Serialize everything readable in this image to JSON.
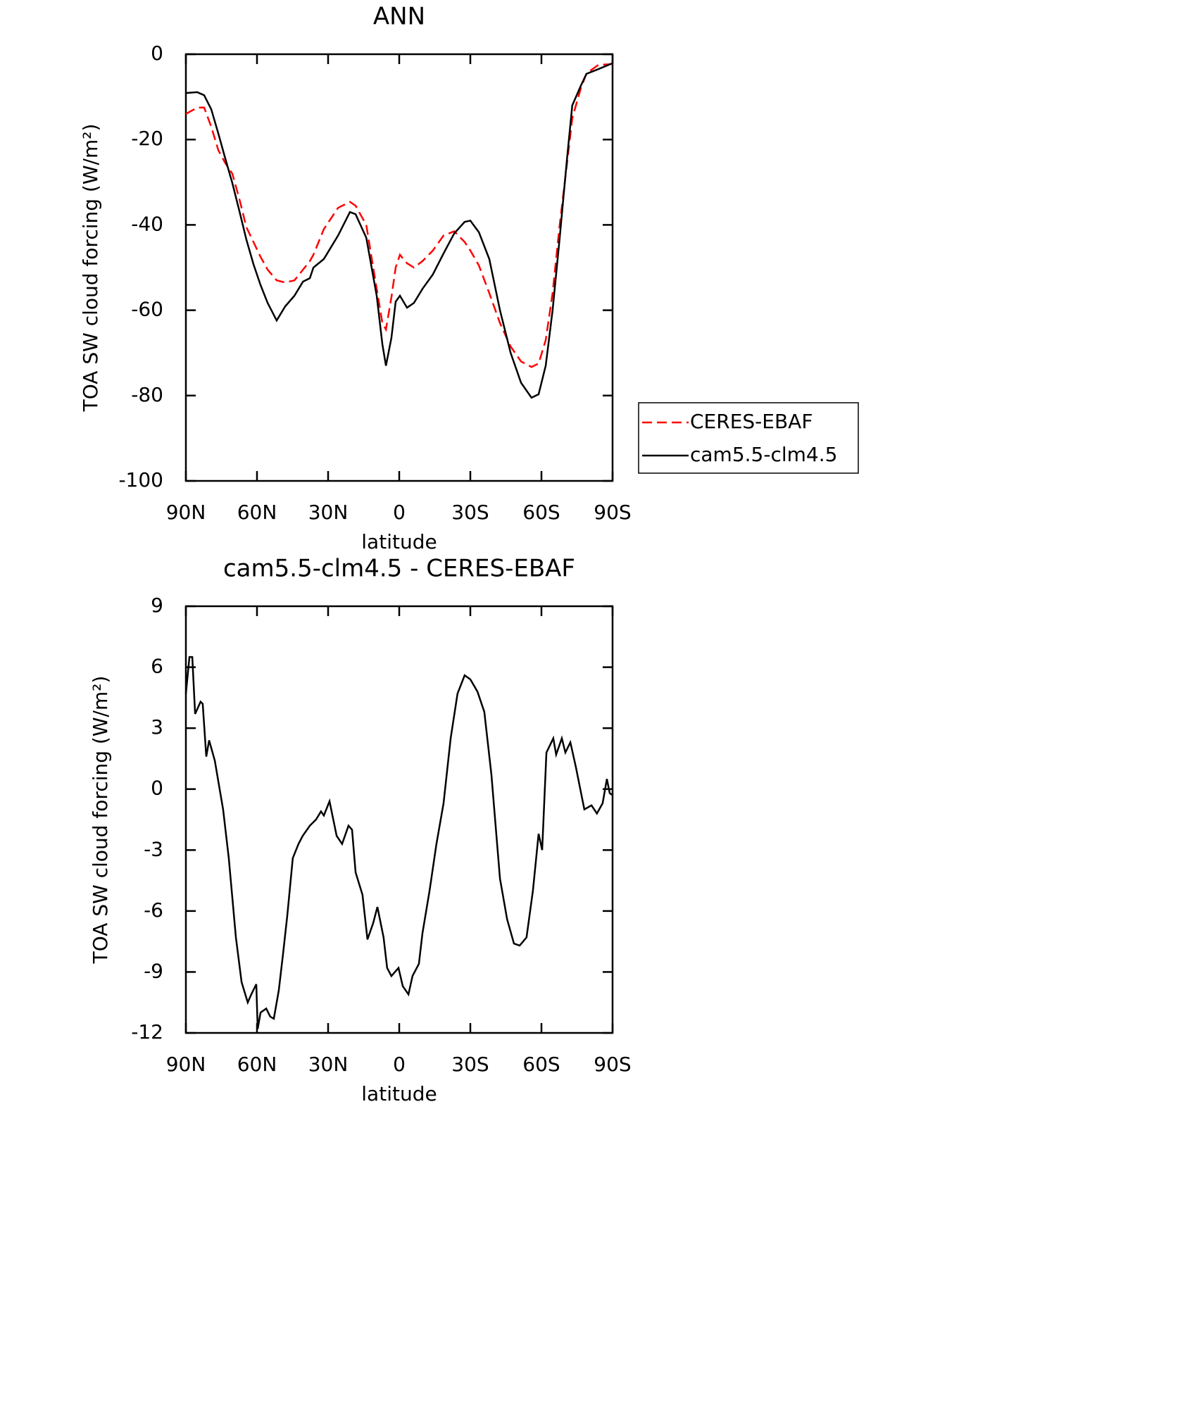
{
  "chart_data": [
    {
      "type": "line",
      "title": "ANN",
      "xlabel": "latitude",
      "ylabel": "TOA SW cloud forcing (W/m²)",
      "x": [
        90,
        85.2,
        82.3,
        79.3,
        76.3,
        73.4,
        70.4,
        67.4,
        64.5,
        61.5,
        58.5,
        55.5,
        51.7,
        48.1,
        44.2,
        40.6,
        37.7,
        36.2,
        31.8,
        25.8,
        20.8,
        18.4,
        13.9,
        9.5,
        7.1,
        5.6,
        3.3,
        1.5,
        -0.3,
        -3.3,
        -6.2,
        -9.8,
        -14.2,
        -18.7,
        -23.2,
        -27.6,
        -30,
        -33.6,
        -38,
        -42.5,
        -47,
        -51.4,
        -55.8,
        -58.8,
        -61.8,
        -64.7,
        -67.7,
        -70.7,
        -73,
        -76.6,
        -79,
        -84,
        -90
      ],
      "series": [
        {
          "name": "CERES-EBAF",
          "color": "#ff0000",
          "line_style": "dashed",
          "values": [
            -14,
            -12.5,
            -12.5,
            -17,
            -22.5,
            -25.5,
            -28,
            -34,
            -40.5,
            -44,
            -47.5,
            -50.5,
            -53,
            -53.5,
            -53,
            -50.5,
            -48.5,
            -47,
            -41,
            -36,
            -34.6,
            -35.5,
            -40,
            -55,
            -63,
            -64.5,
            -57,
            -50,
            -47,
            -49,
            -50,
            -48.5,
            -46,
            -42.5,
            -41.5,
            -44,
            -46,
            -49.5,
            -56,
            -63,
            -68.5,
            -72,
            -73.3,
            -72.5,
            -67,
            -56,
            -40,
            -26,
            -15,
            -8,
            -4.5,
            -2.5,
            -2.3
          ]
        },
        {
          "name": "cam5.5-clm4.5",
          "color": "#000000",
          "line_style": "solid",
          "values": [
            -9.1,
            -8.9,
            -9.6,
            -12.9,
            -18.6,
            -24.4,
            -30.2,
            -36.8,
            -43.4,
            -49.2,
            -54.1,
            -58.3,
            -62.4,
            -59.1,
            -56.6,
            -53.3,
            -52.5,
            -50,
            -48,
            -42.5,
            -37,
            -37.5,
            -43,
            -56.6,
            -68,
            -73,
            -66.5,
            -58,
            -56.6,
            -59.4,
            -58.3,
            -55,
            -51.6,
            -46.7,
            -42,
            -39.3,
            -39,
            -41.7,
            -48,
            -60,
            -70,
            -77,
            -80.5,
            -79.7,
            -73,
            -60,
            -43,
            -25,
            -12,
            -7.4,
            -4.6,
            -3.5,
            -2.1
          ]
        }
      ],
      "xlim": [
        90,
        -90
      ],
      "ylim": [
        0,
        -100
      ],
      "xticks": [
        {
          "value": 90,
          "label": "90N"
        },
        {
          "value": 60,
          "label": "60N"
        },
        {
          "value": 30,
          "label": "30N"
        },
        0,
        {
          "value": -30,
          "label": "30S"
        },
        {
          "value": -60,
          "label": "60S"
        },
        {
          "value": -90,
          "label": "90S"
        }
      ],
      "yticks": [
        0,
        -20,
        -40,
        -60,
        -80,
        -100
      ],
      "legend": "outside-right"
    },
    {
      "type": "line",
      "title": "cam5.5-clm4.5 - CERES-EBAF",
      "xlabel": "latitude",
      "ylabel": "TOA SW cloud forcing (W/m²)",
      "x": [
        90,
        88.5,
        87.3,
        86.1,
        83.8,
        82.9,
        81.4,
        80.2,
        77.8,
        74.3,
        71.9,
        68.9,
        66.5,
        63.9,
        62.4,
        60.3,
        59.7,
        58.5,
        56.1,
        54.4,
        52.9,
        50.8,
        49,
        47.2,
        44.9,
        42.5,
        40.7,
        37.7,
        35.1,
        33,
        31.8,
        29.4,
        26.4,
        24.1,
        21.4,
        19.9,
        18.4,
        15.5,
        13.4,
        11,
        9.2,
        6.6,
        5.1,
        3.3,
        0.3,
        -1.5,
        -3.9,
        -5.6,
        -8.3,
        -9.8,
        -12.8,
        -15.7,
        -18.7,
        -21.7,
        -24.6,
        -27.6,
        -30,
        -33,
        -35.9,
        -38.9,
        -42.5,
        -45.5,
        -48.4,
        -50.8,
        -53.7,
        -56.4,
        -58.8,
        -60.3,
        -62.1,
        -65,
        -66.2,
        -68.6,
        -70.1,
        -72.2,
        -74.5,
        -78.1,
        -81.1,
        -83.4,
        -85.8,
        -87.6,
        -88.8,
        -90
      ],
      "color": "#000000",
      "values": [
        4.7,
        6.5,
        6.5,
        3.7,
        4.3,
        4.2,
        1.6,
        2.4,
        1.4,
        -1,
        -3.4,
        -7.3,
        -9.5,
        -10.5,
        -10.1,
        -9.6,
        -11.8,
        -11,
        -10.8,
        -11.2,
        -11.3,
        -9.9,
        -8.1,
        -6.2,
        -3.4,
        -2.7,
        -2.3,
        -1.8,
        -1.5,
        -1.1,
        -1.3,
        -0.6,
        -2.3,
        -2.7,
        -1.8,
        -2,
        -4.1,
        -5.2,
        -7.4,
        -6.6,
        -5.8,
        -7.3,
        -8.8,
        -9.2,
        -8.8,
        -9.7,
        -10.1,
        -9.2,
        -8.6,
        -7.1,
        -5,
        -2.7,
        -0.7,
        2.5,
        4.7,
        5.6,
        5.4,
        4.8,
        3.8,
        0.7,
        -4.4,
        -6.4,
        -7.6,
        -7.7,
        -7.3,
        -5,
        -2.2,
        -3,
        1.8,
        2.5,
        1.7,
        2.5,
        1.8,
        2.3,
        1.1,
        -1,
        -0.8,
        -1.2,
        -0.7,
        0.5,
        -0.2,
        -0.3
      ],
      "xlim": [
        90,
        -90
      ],
      "ylim": [
        9,
        -12
      ],
      "xticks": [
        {
          "value": 90,
          "label": "90N"
        },
        {
          "value": 60,
          "label": "60N"
        },
        {
          "value": 30,
          "label": "30N"
        },
        0,
        {
          "value": -30,
          "label": "30S"
        },
        {
          "value": -60,
          "label": "60S"
        },
        {
          "value": -90,
          "label": "90S"
        }
      ],
      "yticks": [
        9,
        6,
        3,
        0,
        -3,
        -6,
        -9,
        -12
      ]
    }
  ]
}
